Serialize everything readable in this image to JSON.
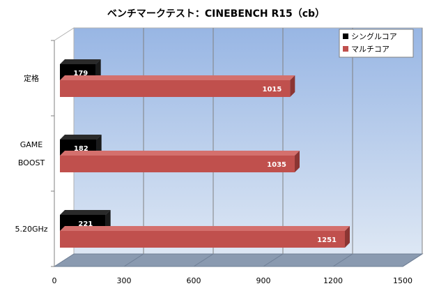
{
  "chart_data": {
    "type": "bar",
    "orientation": "horizontal",
    "title": "ベンチマークテスト：CINEBENCH R15（cb）",
    "categories": [
      [
        "定格"
      ],
      [
        "GAME",
        "BOOST"
      ],
      [
        "5.20GHz"
      ]
    ],
    "series": [
      {
        "name": "シングルコア",
        "values": [
          179,
          182,
          221
        ],
        "color": "#000000"
      },
      {
        "name": "マルチコア",
        "values": [
          1015,
          1035,
          1251
        ],
        "color": "#c0504d"
      }
    ],
    "xlim": [
      0,
      1500
    ],
    "xticks": [
      0,
      300,
      600,
      900,
      1200,
      1500
    ],
    "grid": true,
    "legend_position": "top-right",
    "plot_background": "#b8cde8",
    "floor_color": "#8a9ab0"
  }
}
